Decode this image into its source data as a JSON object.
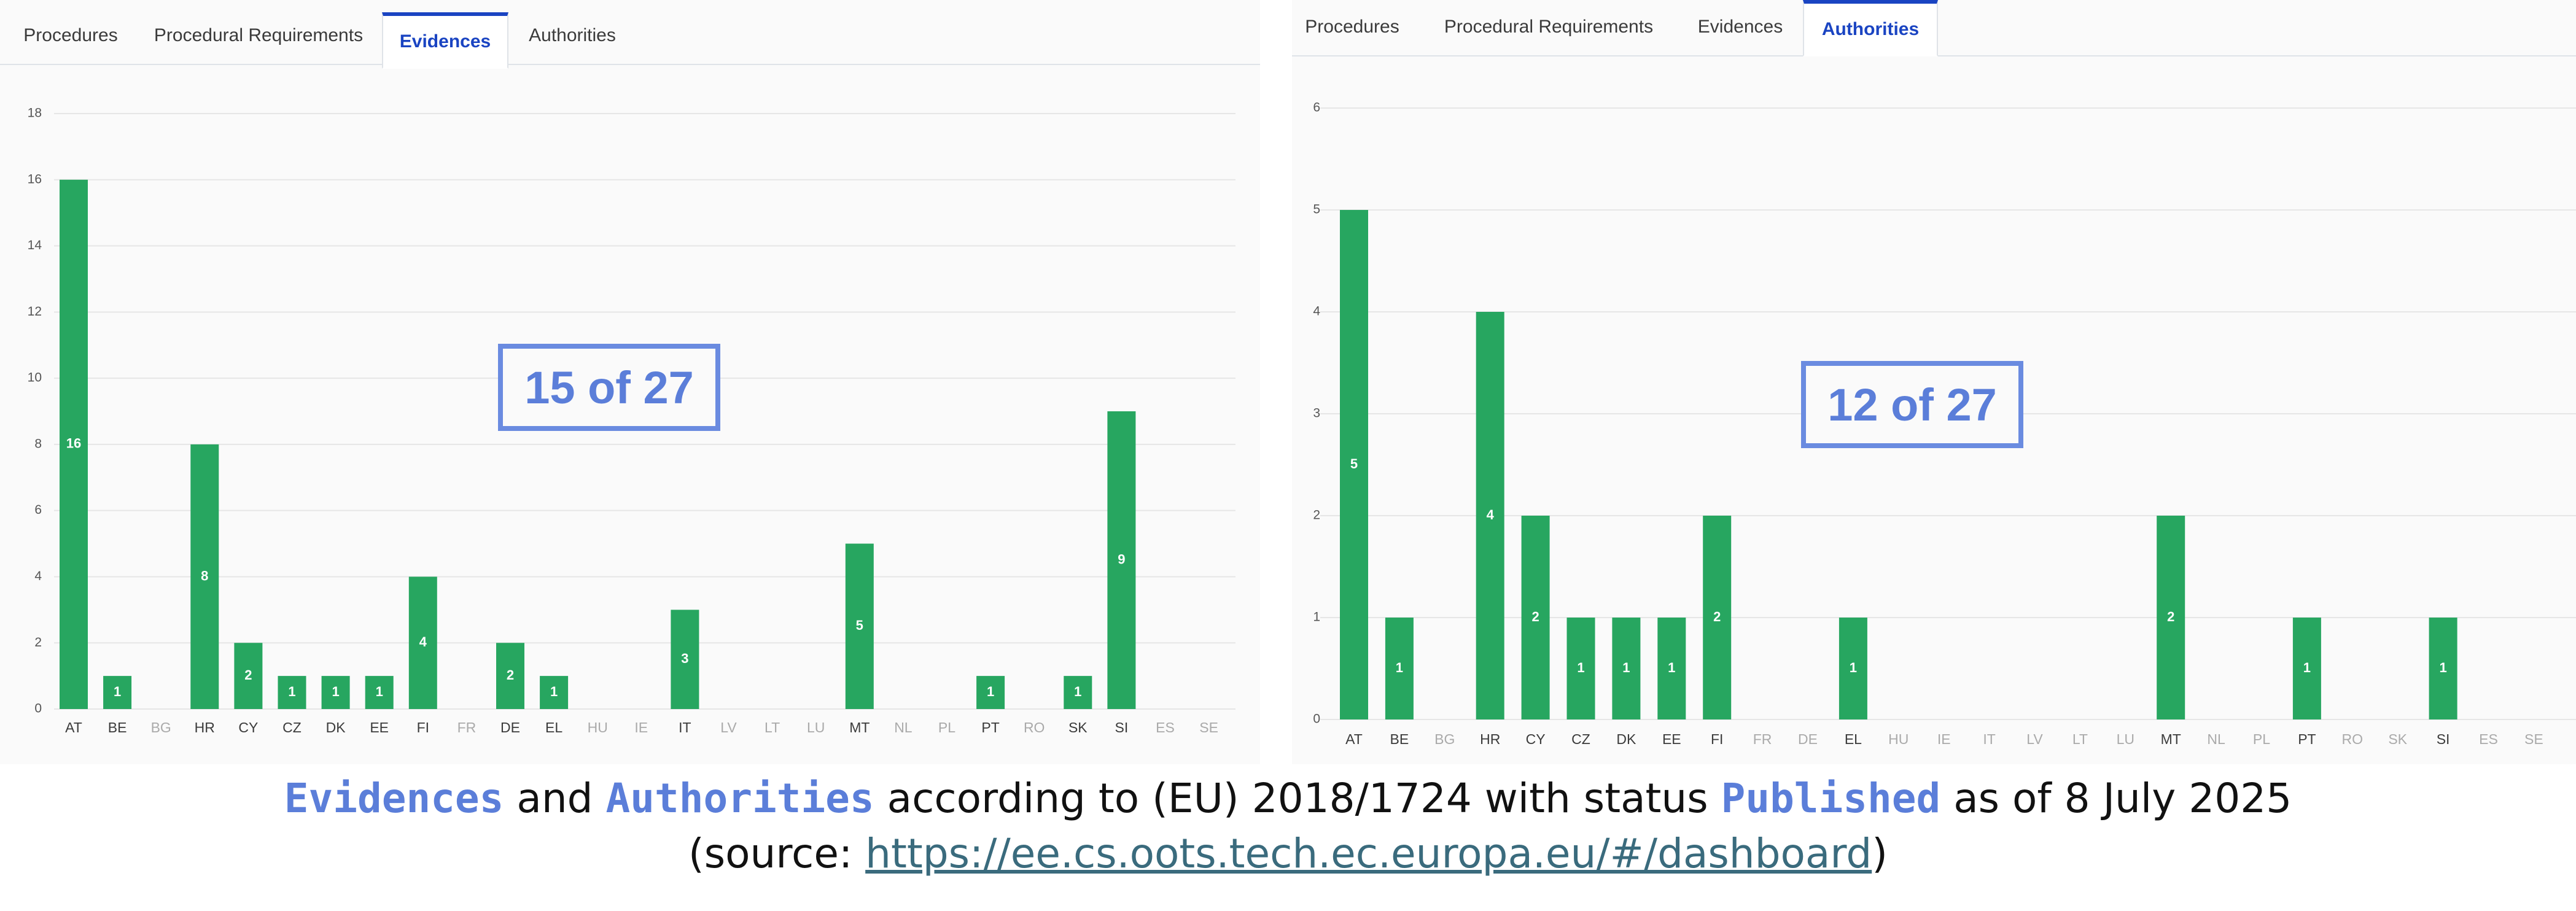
{
  "tabs": {
    "left": [
      "Procedures",
      "Procedural Requirements",
      "Evidences",
      "Authorities"
    ],
    "left_active": 2,
    "right": [
      "Procedures",
      "Procedural Requirements",
      "Evidences",
      "Authorities"
    ],
    "right_active": 3
  },
  "counters": {
    "left": "15 of 27",
    "right": "12 of 27"
  },
  "caption": {
    "word1": "Evidences",
    "and": "and",
    "word2": "Authorities",
    "middle": "according to (EU) 2018/1724 with status",
    "word3": "Published",
    "tail": "as of 8 July 2025",
    "source_prefix": "(source: ",
    "source_link": "https://ee.cs.oots.tech.ec.europa.eu/#/dashboard",
    "source_suffix": ")"
  },
  "colors": {
    "bar": "#27a660",
    "accent": "#1a44c2",
    "counter": "#5b7ed9",
    "active_tick": "#3b3b3b",
    "inactive_tick": "#aaaaaa"
  },
  "chart_data": [
    {
      "type": "bar",
      "categories": [
        "AT",
        "BE",
        "BG",
        "HR",
        "CY",
        "CZ",
        "DK",
        "EE",
        "FI",
        "FR",
        "DE",
        "EL",
        "HU",
        "IE",
        "IT",
        "LV",
        "LT",
        "LU",
        "MT",
        "NL",
        "PL",
        "PT",
        "RO",
        "SK",
        "SI",
        "ES",
        "SE"
      ],
      "values": [
        16,
        1,
        0,
        8,
        2,
        1,
        1,
        1,
        4,
        0,
        2,
        1,
        0,
        0,
        3,
        0,
        0,
        0,
        5,
        0,
        0,
        1,
        0,
        1,
        9,
        0,
        0
      ],
      "ylim": [
        0,
        18
      ],
      "yticks": [
        0,
        2,
        4,
        6,
        8,
        10,
        12,
        14,
        16,
        18
      ],
      "grid": true
    },
    {
      "type": "bar",
      "categories": [
        "AT",
        "BE",
        "BG",
        "HR",
        "CY",
        "CZ",
        "DK",
        "EE",
        "FI",
        "FR",
        "DE",
        "EL",
        "HU",
        "IE",
        "IT",
        "LV",
        "LT",
        "LU",
        "MT",
        "NL",
        "PL",
        "PT",
        "RO",
        "SK",
        "SI",
        "ES",
        "SE"
      ],
      "values": [
        5,
        1,
        0,
        4,
        2,
        1,
        1,
        1,
        2,
        0,
        0,
        1,
        0,
        0,
        0,
        0,
        0,
        0,
        2,
        0,
        0,
        1,
        0,
        0,
        1,
        0,
        0
      ],
      "ylim": [
        0,
        6
      ],
      "yticks": [
        0,
        1,
        2,
        3,
        4,
        5,
        6
      ],
      "grid": true
    }
  ]
}
